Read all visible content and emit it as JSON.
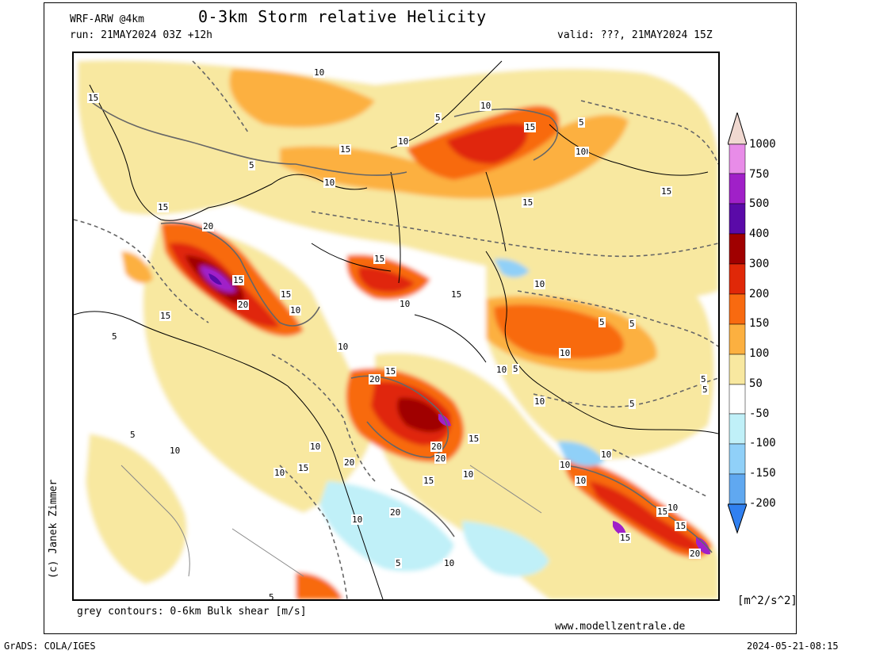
{
  "header": {
    "model": "WRF-ARW @4km",
    "title": "0-3km Storm relative Helicity",
    "run": "run: 21MAY2024 03Z +12h",
    "valid": "valid: ???, 21MAY2024 15Z"
  },
  "footer": {
    "contours_note": "grey contours: 0-6km Bulk shear [m/s]",
    "website": "www.modellzentrale.de",
    "grads": "GrADS: COLA/IGES",
    "timestamp": "2024-05-21-08:15"
  },
  "credit": "(c) Janek Zimmer",
  "colorbar": {
    "unit": "[m^2/s^2]",
    "levels": [
      {
        "label": "1000",
        "color": "#f0d8d0"
      },
      {
        "label": "750",
        "color": "#e88ce8"
      },
      {
        "label": "500",
        "color": "#a020c8"
      },
      {
        "label": "400",
        "color": "#5a0aa8"
      },
      {
        "label": "300",
        "color": "#a00000"
      },
      {
        "label": "200",
        "color": "#e02808"
      },
      {
        "label": "150",
        "color": "#f86a10"
      },
      {
        "label": "100",
        "color": "#fcb040"
      },
      {
        "label": "50",
        "color": "#f8e8a0"
      },
      {
        "label": "-50",
        "color": "#ffffff"
      },
      {
        "label": "-100",
        "color": "#c0f0f8"
      },
      {
        "label": "-150",
        "color": "#90d0f8"
      },
      {
        "label": "-200",
        "color": "#60a8f0"
      }
    ],
    "bottom_color": "#3080f0"
  },
  "contour_labels": [
    "10",
    "15",
    "5",
    "10",
    "15",
    "10",
    "15",
    "5",
    "10",
    "5",
    "15",
    "10",
    "15",
    "20",
    "15",
    "15",
    "20",
    "15",
    "10",
    "10",
    "5",
    "10",
    "15",
    "15",
    "10",
    "5",
    "10",
    "15",
    "10",
    "10",
    "20",
    "5",
    "10",
    "5",
    "20",
    "15",
    "20",
    "15",
    "10",
    "10",
    "15",
    "5",
    "10",
    "15",
    "5",
    "10",
    "20",
    "10",
    "5",
    "15",
    "20",
    "10",
    "5",
    "10",
    "15",
    "5",
    "10",
    "20",
    "15",
    "10",
    "5",
    "10"
  ]
}
